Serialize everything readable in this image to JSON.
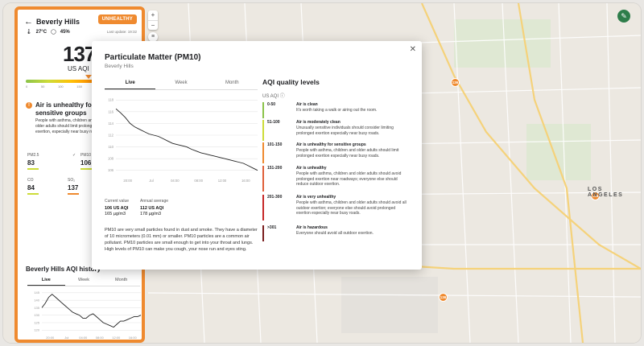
{
  "panel": {
    "city": "Beverly Hills",
    "badge": "UNHEALTHY",
    "temp": "27°C",
    "humidity": "45%",
    "updated": "Last update: 19:32",
    "aqi_value": "137",
    "aqi_unit": "US AQI",
    "scale_ticks": [
      "0",
      "50",
      "100",
      "150",
      "200",
      "300",
      "500"
    ],
    "warning_title": "Air is unhealthy for sensitive groups",
    "warning_text": "People with asthma, children and older adults should limit prolonged exertion, especially near busy roads.",
    "pollutants": [
      {
        "name": "PM2.5",
        "value": "83",
        "color": "#cddc39"
      },
      {
        "name": "PM10",
        "value": "106",
        "color": "#cddc39"
      },
      {
        "name": "CO",
        "value": "84",
        "color": "#cddc39"
      },
      {
        "name": "SO₂",
        "value": "137",
        "color": "#ef8a2f"
      }
    ],
    "history_title": "Beverly Hills AQI history",
    "tabs": [
      "Live",
      "Week",
      "Month"
    ]
  },
  "map": {
    "pins": [
      "136",
      "136",
      "136"
    ],
    "label": "LOS ANGELES",
    "zoom_in": "+",
    "zoom_out": "−",
    "layers_icon": "layers-icon",
    "edit_icon": "pencil-icon"
  },
  "modal": {
    "title": "Particulate Matter (PM10)",
    "subtitle": "Beverly Hills",
    "tabs": [
      "Live",
      "Week",
      "Month"
    ],
    "current_label": "Current value",
    "current_aqi": "106 US AQI",
    "current_ug": "165 µg/m3",
    "annual_label": "Annual average",
    "annual_aqi": "112 US AQI",
    "annual_ug": "178 µg/m3",
    "description": "PM10 are very small particles found in dust and smoke. They have a diameter of 10 micrometers (0.01 mm) or smaller. PM10 particles are a common air pollutant. PM10 particles are small enough to get into your throat and lungs. High levels of PM10 can make you cough, your nose run and eyes sting.",
    "quality_title": "AQI quality levels",
    "quality_unit": "US AQI",
    "levels": [
      {
        "range": "0-50",
        "title": "Air is clean",
        "desc": "It's worth taking a walk or airing out the room.",
        "color": "#8bc34a"
      },
      {
        "range": "51-100",
        "title": "Air is moderately clean",
        "desc": "Unusually sensitive individuals should consider limiting prolonged exertion especially near busy roads.",
        "color": "#cddc39"
      },
      {
        "range": "101-150",
        "title": "Air is unhealthy for sensitive groups",
        "desc": "People with asthma, children and older adults should limit prolonged exertion especially near busy roads.",
        "color": "#ef8a2f"
      },
      {
        "range": "151-200",
        "title": "Air is unhealthy",
        "desc": "People with asthma, children and older adults should avoid prolonged exertion near roadways; everyone else should reduce outdoor exertion.",
        "color": "#e0603a"
      },
      {
        "range": "201-300",
        "title": "Air is very unhealthy",
        "desc": "People with asthma, children and older adults should avoid all outdoor exertion; everyone else should avoid prolonged exertion especially near busy roads.",
        "color": "#c62828"
      },
      {
        "range": ">301",
        "title": "Air is hazardous",
        "desc": "Everyone should avoid all outdoor exertion.",
        "color": "#7b1f1f"
      }
    ]
  },
  "chart_data": [
    {
      "type": "line",
      "y_ticks": [
        "106",
        "108",
        "110",
        "112",
        "114",
        "116",
        "118"
      ],
      "x_ticks": [
        "20:00",
        "Jul",
        "04:00",
        "08:00",
        "12:00",
        "16:00"
      ],
      "ylim": [
        105,
        119
      ],
      "values": [
        116.5,
        115.8,
        115,
        114,
        113.4,
        113,
        112.6,
        112.2,
        112,
        111.8,
        111.4,
        111,
        110.6,
        110.4,
        110.2,
        110,
        109.6,
        109.3,
        109,
        108.8,
        108.6,
        108.4,
        108.2,
        108,
        107.8,
        107.6,
        107.4,
        107.2,
        106.8,
        106.4,
        106
      ]
    },
    {
      "type": "line",
      "y_ticks": [
        "120",
        "125",
        "130",
        "135",
        "140",
        "145"
      ],
      "x_ticks": [
        "20:00",
        "Jul",
        "04:00",
        "08:00",
        "12:00",
        "16:00"
      ],
      "ylim": [
        118,
        146
      ],
      "values": [
        135,
        138,
        142,
        144,
        142,
        140,
        138,
        136,
        134,
        132,
        131,
        130,
        128,
        128,
        130,
        131,
        129,
        127,
        125,
        124,
        123,
        122,
        124,
        126,
        126,
        127,
        128,
        129,
        129,
        130
      ]
    }
  ]
}
